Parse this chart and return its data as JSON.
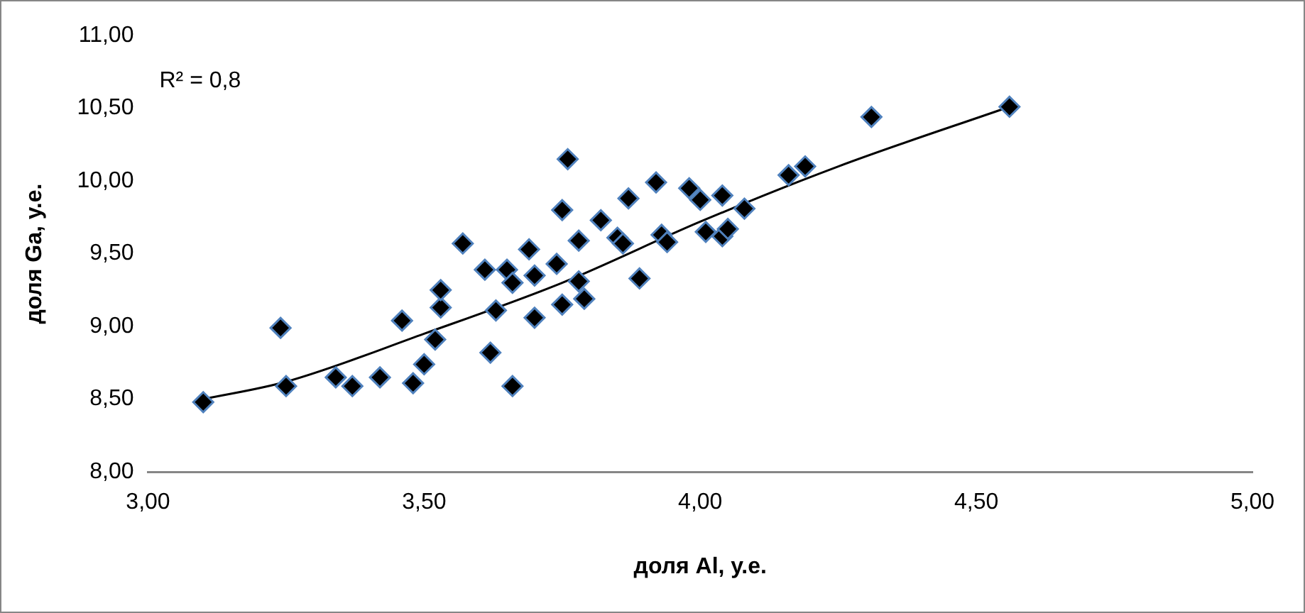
{
  "chart_data": {
    "type": "scatter",
    "xlabel": "доля Al, у.е.",
    "ylabel": "доля Ga, у.е.",
    "xlim": [
      3,
      5
    ],
    "xticks": [
      {
        "value": 3,
        "label": "3,00"
      },
      {
        "value": 3.5,
        "label": "3,50"
      },
      {
        "value": 4,
        "label": "4,00"
      },
      {
        "value": 4.5,
        "label": "4,50"
      },
      {
        "value": 5,
        "label": "5,00"
      }
    ],
    "ylim": [
      8,
      11
    ],
    "yticks": [
      {
        "value": 8,
        "label": "8,00"
      },
      {
        "value": 8.5,
        "label": "8,50"
      },
      {
        "value": 9,
        "label": "9,00"
      },
      {
        "value": 9.5,
        "label": "9,50"
      },
      {
        "value": 10,
        "label": "10,00"
      },
      {
        "value": 10.5,
        "label": "10,50"
      },
      {
        "value": 11,
        "label": "11,00"
      }
    ],
    "annotations": [
      "R² = 0,8"
    ],
    "series": [
      {
        "marker": "diamond",
        "color": "#000000",
        "x": [
          3.1,
          3.24,
          3.25,
          3.34,
          3.37,
          3.42,
          3.46,
          3.48,
          3.5,
          3.52,
          3.53,
          3.53,
          3.57,
          3.61,
          3.62,
          3.63,
          3.65,
          3.66,
          3.66,
          3.69,
          3.7,
          3.7,
          3.74,
          3.75,
          3.75,
          3.76,
          3.78,
          3.78,
          3.79,
          3.82,
          3.85,
          3.86,
          3.87,
          3.89,
          3.92,
          3.93,
          3.94,
          3.98,
          4.0,
          4.01,
          4.04,
          4.04,
          4.05,
          4.08,
          4.16,
          4.19,
          4.31,
          4.56
        ],
        "values": [
          8.48,
          8.99,
          8.59,
          8.65,
          8.59,
          8.65,
          9.04,
          8.61,
          8.74,
          8.91,
          9.13,
          9.25,
          9.57,
          9.39,
          8.82,
          9.11,
          9.39,
          8.59,
          9.3,
          9.53,
          9.06,
          9.35,
          9.43,
          9.8,
          9.15,
          10.15,
          9.59,
          9.31,
          9.19,
          9.73,
          9.61,
          9.57,
          9.88,
          9.33,
          9.99,
          9.63,
          9.58,
          9.95,
          9.87,
          9.65,
          9.62,
          9.9,
          9.67,
          9.81,
          10.04,
          10.1,
          10.44,
          10.51
        ]
      },
      {
        "type": "line",
        "marker": "none",
        "color": "#000000",
        "x": [
          3.1,
          3.25,
          3.5,
          3.75,
          4.0,
          4.25,
          4.56
        ],
        "values": [
          8.5,
          8.62,
          8.95,
          9.3,
          9.72,
          10.1,
          10.51
        ]
      }
    ]
  }
}
